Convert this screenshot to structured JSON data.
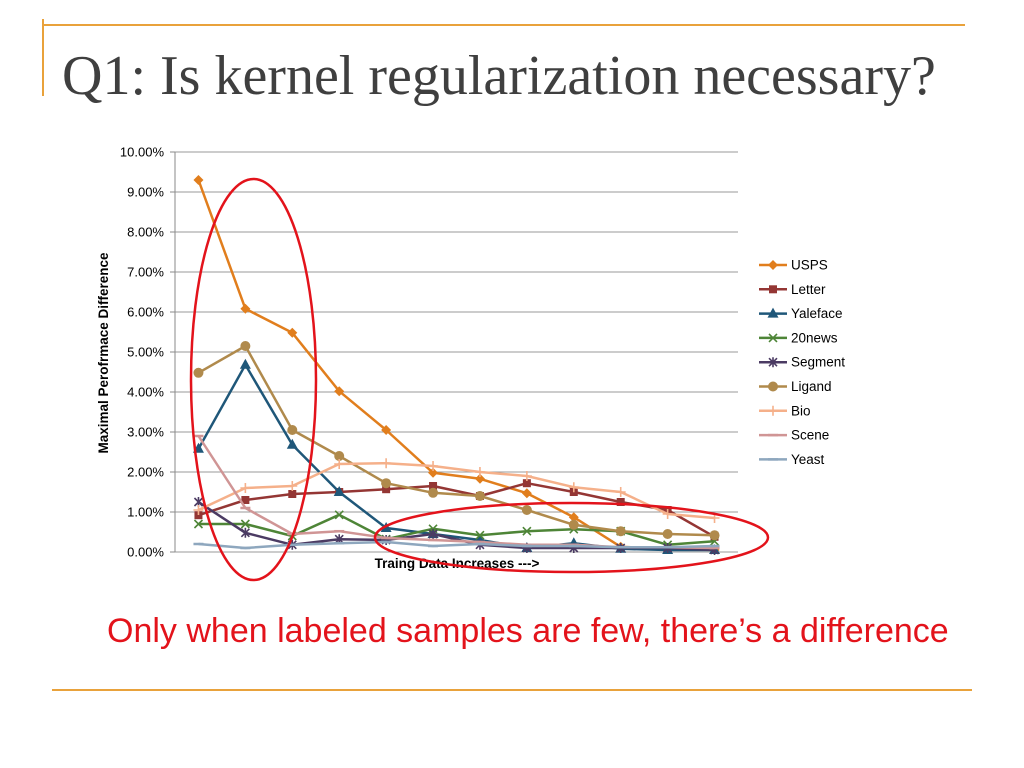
{
  "slide": {
    "title": "Q1: Is kernel regularization necessary?",
    "annotation": "Only when labeled samples are few, there’s a difference",
    "accent_color": "#E9A23B",
    "annotation_color": "#E3131B",
    "title_color": "#3F3F3F"
  },
  "chart_data": {
    "type": "line",
    "xlabel": "Traing Data Increases --->",
    "ylabel": "Maximal Perofrmace Difference",
    "ylim": [
      0,
      10
    ],
    "y_ticks": [
      "0.00%",
      "1.00%",
      "2.00%",
      "3.00%",
      "4.00%",
      "5.00%",
      "6.00%",
      "7.00%",
      "8.00%",
      "9.00%",
      "10.00%"
    ],
    "grid": true,
    "legend_position": "right",
    "series": [
      {
        "name": "USPS",
        "color": "#E17E1D",
        "marker": "diamond",
        "values": [
          9.3,
          6.08,
          5.48,
          4.02,
          3.05,
          1.98,
          1.83,
          1.47,
          0.87,
          0.13,
          0.08,
          0.05
        ]
      },
      {
        "name": "Letter",
        "color": "#943634",
        "marker": "square",
        "values": [
          0.92,
          1.3,
          1.45,
          1.5,
          1.57,
          1.65,
          1.4,
          1.72,
          1.5,
          1.25,
          1.05,
          0.38
        ]
      },
      {
        "name": "Yaleface",
        "color": "#1F5779",
        "marker": "triangle",
        "values": [
          2.58,
          4.68,
          2.68,
          1.5,
          0.6,
          0.45,
          0.3,
          0.1,
          0.22,
          0.08,
          0.05,
          0.05
        ]
      },
      {
        "name": "20news",
        "color": "#4E8537",
        "marker": "x",
        "values": [
          0.7,
          0.7,
          0.4,
          0.93,
          0.32,
          0.58,
          0.42,
          0.52,
          0.57,
          0.52,
          0.18,
          0.27
        ]
      },
      {
        "name": "Segment",
        "color": "#4B3B63",
        "marker": "star",
        "values": [
          1.25,
          0.48,
          0.18,
          0.32,
          0.3,
          0.45,
          0.18,
          0.1,
          0.1,
          0.1,
          0.1,
          0.05
        ]
      },
      {
        "name": "Ligand",
        "color": "#B08A4C",
        "marker": "circle",
        "values": [
          4.48,
          5.15,
          3.05,
          2.4,
          1.72,
          1.48,
          1.4,
          1.05,
          0.68,
          0.52,
          0.45,
          0.42
        ]
      },
      {
        "name": "Bio",
        "color": "#F5B08A",
        "marker": "plus",
        "values": [
          1.05,
          1.6,
          1.65,
          2.2,
          2.22,
          2.15,
          2.0,
          1.9,
          1.62,
          1.5,
          0.95,
          0.85
        ]
      },
      {
        "name": "Scene",
        "color": "#D09595",
        "marker": "dash",
        "values": [
          2.9,
          1.1,
          0.45,
          0.52,
          0.35,
          0.3,
          0.25,
          0.18,
          0.18,
          0.12,
          0.12,
          0.1
        ]
      },
      {
        "name": "Yeast",
        "color": "#8EA7BE",
        "marker": "dash",
        "values": [
          0.2,
          0.1,
          0.18,
          0.22,
          0.25,
          0.15,
          0.2,
          0.15,
          0.15,
          0.12,
          0.12,
          0.15
        ]
      }
    ]
  }
}
